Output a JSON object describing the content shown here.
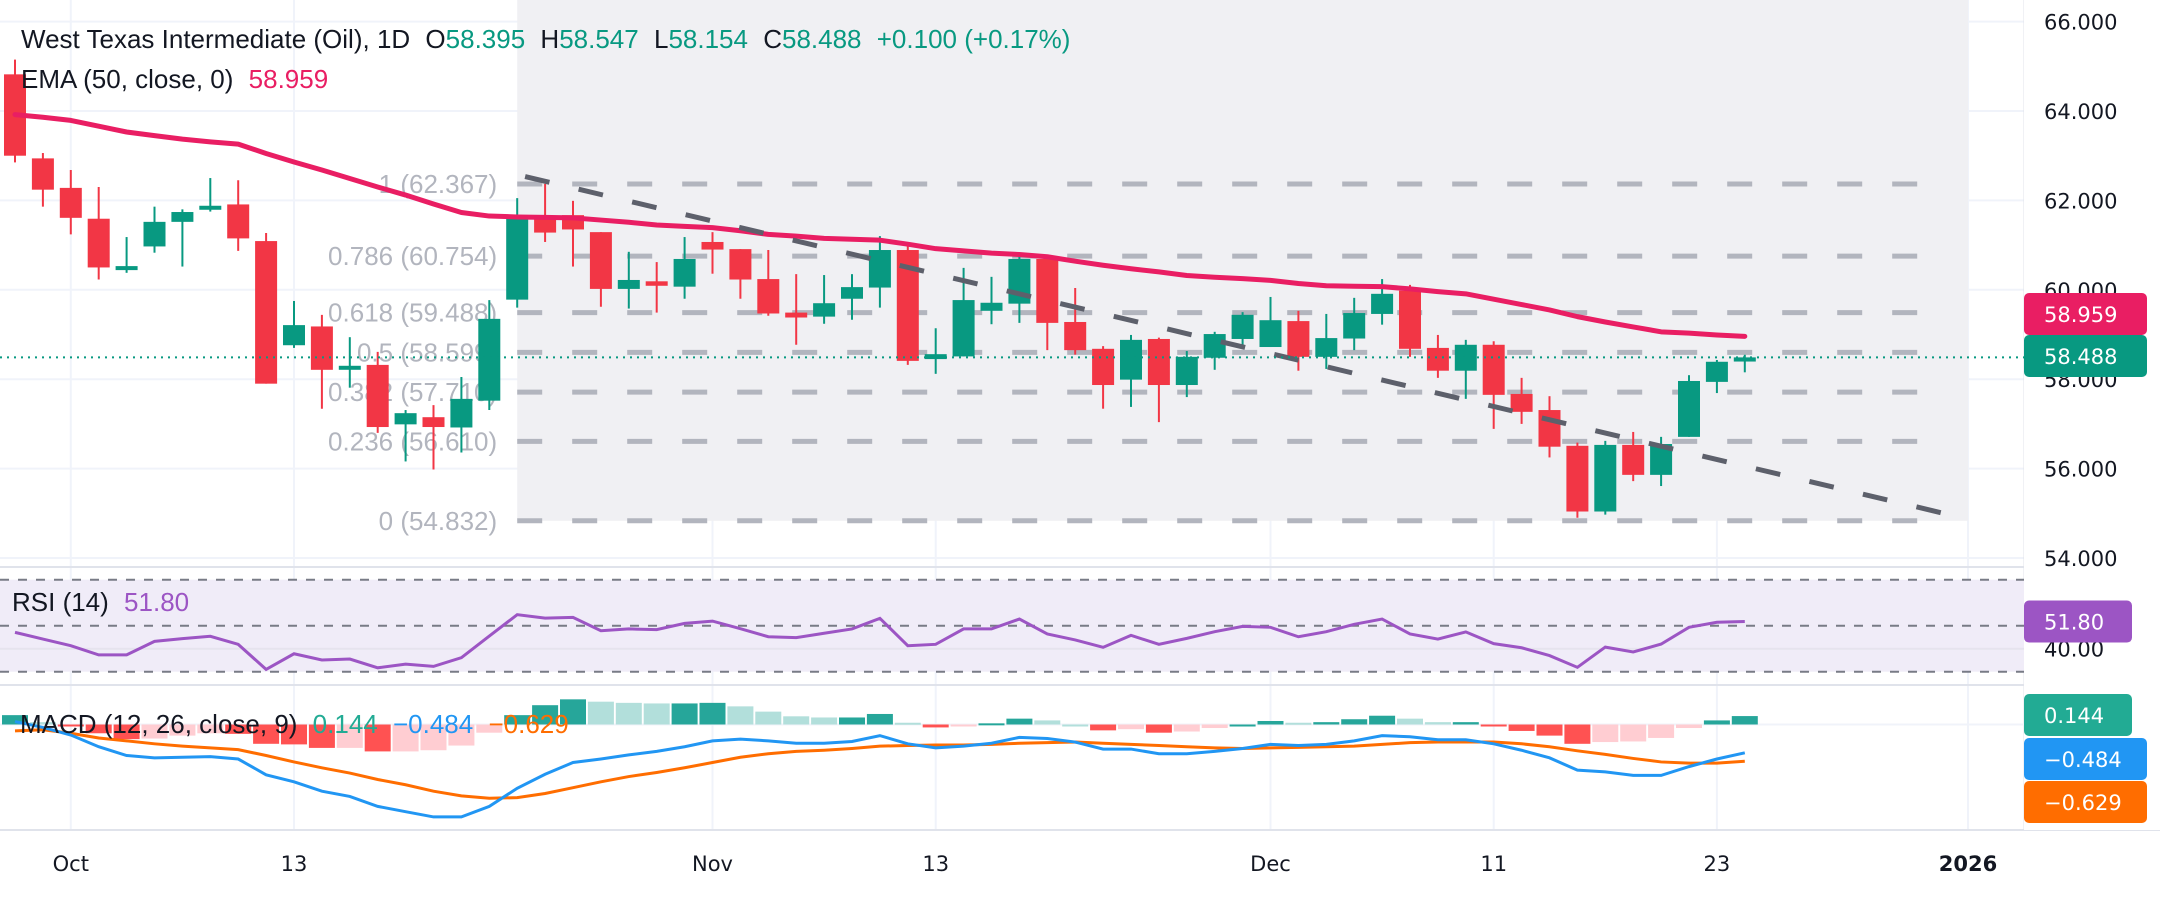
{
  "legend": {
    "symbol": "West Texas Intermediate (Oil), 1D",
    "open_label": "O",
    "open": "58.395",
    "high_label": "H",
    "high": "58.547",
    "low_label": "L",
    "low": "58.154",
    "close_label": "C",
    "close": "58.488",
    "change": "+0.100 (+0.17%)",
    "ema_label": "EMA (50, close, 0)",
    "ema_value": "58.959",
    "rsi_label": "RSI (14)",
    "rsi_value": "51.80",
    "macd_label": "MACD (12, 26, close, 9)",
    "macd_hist": "0.144",
    "macd_value": "−0.484",
    "macd_signal": "−0.629"
  },
  "colors": {
    "up": "#089981",
    "down": "#f23645",
    "ema": "#e91e63",
    "rsi": "#9c55c4",
    "macd": "#2196f3",
    "signal": "#ff6d00",
    "hist_up_strong": "#26a69a",
    "hist_up_weak": "#b2dfdb",
    "hist_down_strong": "#ff5252",
    "hist_down_weak": "#ffcdd2",
    "fib": "#b2b5be",
    "trendline": "#5d606b"
  },
  "chart_data": {
    "type": "candlestick",
    "price_axis": {
      "ticks": [
        "66.000",
        "64.000",
        "62.000",
        "60.000",
        "58.000",
        "56.000",
        "54.000"
      ],
      "range": [
        53.8,
        66.3
      ]
    },
    "time_axis": {
      "ticks": [
        {
          "label": "Oct",
          "date": "2025-10-01"
        },
        {
          "label": "13",
          "date": "2025-10-13"
        },
        {
          "label": "Nov",
          "date": "2025-11-03"
        },
        {
          "label": "13",
          "date": "2025-11-13"
        },
        {
          "label": "Dec",
          "date": "2025-12-01"
        },
        {
          "label": "11",
          "date": "2025-12-11"
        },
        {
          "label": "23",
          "date": "2025-12-23"
        },
        {
          "label": "2026",
          "date": "2026-01-05",
          "bold": true
        }
      ]
    },
    "candle_fields": [
      "date",
      "open",
      "high",
      "low",
      "close"
    ],
    "candles": [
      [
        "2025-09-29",
        64.82,
        65.15,
        62.85,
        63.0
      ],
      [
        "2025-09-30",
        62.94,
        63.06,
        61.86,
        62.24
      ],
      [
        "2025-10-01",
        62.28,
        62.68,
        61.24,
        61.61
      ],
      [
        "2025-10-02",
        61.59,
        62.3,
        60.23,
        60.5
      ],
      [
        "2025-10-03",
        60.5,
        61.18,
        60.38,
        60.53
      ],
      [
        "2025-10-06",
        60.97,
        61.86,
        60.83,
        61.52
      ],
      [
        "2025-10-07",
        61.52,
        61.8,
        60.52,
        61.74
      ],
      [
        "2025-10-08",
        61.86,
        62.5,
        61.75,
        61.88
      ],
      [
        "2025-10-09",
        61.91,
        62.45,
        60.87,
        61.15
      ],
      [
        "2025-10-10",
        61.09,
        61.27,
        57.9,
        57.9
      ],
      [
        "2025-10-13",
        58.76,
        59.75,
        58.7,
        59.21
      ],
      [
        "2025-10-14",
        59.18,
        59.44,
        57.34,
        58.21
      ],
      [
        "2025-10-15",
        58.27,
        58.94,
        57.81,
        58.3
      ],
      [
        "2025-10-16",
        58.32,
        58.61,
        56.8,
        56.93
      ],
      [
        "2025-10-17",
        56.99,
        57.31,
        56.16,
        57.24
      ],
      [
        "2025-10-20",
        57.15,
        57.42,
        55.98,
        56.93
      ],
      [
        "2025-10-21",
        56.92,
        58.05,
        56.36,
        57.56
      ],
      [
        "2025-10-22",
        57.52,
        59.77,
        57.31,
        59.35
      ],
      [
        "2025-10-23",
        59.78,
        62.05,
        59.6,
        61.61
      ],
      [
        "2025-10-24",
        61.58,
        62.37,
        61.07,
        61.28
      ],
      [
        "2025-10-27",
        61.67,
        61.99,
        60.52,
        61.35
      ],
      [
        "2025-10-28",
        61.29,
        61.29,
        59.62,
        60.02
      ],
      [
        "2025-10-29",
        60.02,
        60.85,
        59.58,
        60.22
      ],
      [
        "2025-10-30",
        60.19,
        60.62,
        59.49,
        60.09
      ],
      [
        "2025-10-31",
        60.07,
        61.18,
        59.8,
        60.69
      ],
      [
        "2025-11-03",
        61.07,
        61.29,
        60.36,
        60.9
      ],
      [
        "2025-11-04",
        60.91,
        60.91,
        59.8,
        60.23
      ],
      [
        "2025-11-05",
        60.24,
        60.89,
        59.42,
        59.47
      ],
      [
        "2025-11-06",
        59.49,
        60.35,
        58.77,
        59.38
      ],
      [
        "2025-11-07",
        59.4,
        60.33,
        59.24,
        59.7
      ],
      [
        "2025-11-10",
        59.8,
        60.35,
        59.33,
        60.06
      ],
      [
        "2025-11-11",
        60.05,
        61.2,
        59.6,
        60.89
      ],
      [
        "2025-11-12",
        60.89,
        61.02,
        58.32,
        58.41
      ],
      [
        "2025-11-13",
        58.45,
        59.14,
        58.12,
        58.56
      ],
      [
        "2025-11-14",
        58.51,
        60.49,
        58.51,
        59.77
      ],
      [
        "2025-11-17",
        59.53,
        60.29,
        59.23,
        59.71
      ],
      [
        "2025-11-18",
        59.69,
        60.82,
        59.26,
        60.69
      ],
      [
        "2025-11-19",
        60.69,
        60.69,
        58.65,
        59.26
      ],
      [
        "2025-11-20",
        59.28,
        60.04,
        58.55,
        58.65
      ],
      [
        "2025-11-21",
        58.68,
        58.74,
        57.34,
        57.87
      ],
      [
        "2025-11-24",
        57.99,
        58.99,
        57.38,
        58.88
      ],
      [
        "2025-11-25",
        58.9,
        58.93,
        57.04,
        57.87
      ],
      [
        "2025-11-26",
        57.87,
        58.63,
        57.6,
        58.5
      ],
      [
        "2025-11-27",
        58.48,
        59.06,
        58.21,
        59.01
      ],
      [
        "2025-11-28",
        58.9,
        59.5,
        58.73,
        59.44
      ],
      [
        "2025-12-01",
        58.72,
        59.84,
        58.72,
        59.32
      ],
      [
        "2025-12-02",
        59.3,
        59.53,
        58.19,
        58.5
      ],
      [
        "2025-12-03",
        58.5,
        59.46,
        58.23,
        58.92
      ],
      [
        "2025-12-04",
        58.91,
        59.82,
        58.65,
        59.48
      ],
      [
        "2025-12-05",
        59.46,
        60.24,
        59.22,
        59.91
      ],
      [
        "2025-12-08",
        59.98,
        60.11,
        58.5,
        58.68
      ],
      [
        "2025-12-09",
        58.7,
        58.99,
        58.03,
        58.19
      ],
      [
        "2025-12-10",
        58.19,
        58.88,
        57.56,
        58.77
      ],
      [
        "2025-12-11",
        58.77,
        58.85,
        56.89,
        57.65
      ],
      [
        "2025-12-12",
        57.67,
        58.03,
        57.0,
        57.27
      ],
      [
        "2025-12-15",
        57.31,
        57.62,
        56.25,
        56.49
      ],
      [
        "2025-12-16",
        56.51,
        56.58,
        54.9,
        55.04
      ],
      [
        "2025-12-17",
        55.04,
        56.62,
        54.97,
        56.53
      ],
      [
        "2025-12-18",
        56.53,
        56.82,
        55.72,
        55.86
      ],
      [
        "2025-12-19",
        55.86,
        56.71,
        55.61,
        56.55
      ],
      [
        "2025-12-22",
        56.71,
        58.09,
        56.71,
        57.96
      ],
      [
        "2025-12-23",
        57.94,
        58.43,
        57.69,
        58.39
      ],
      [
        "2025-12-24",
        58.395,
        58.547,
        58.154,
        58.488
      ]
    ],
    "ema50": [
      63.92,
      63.86,
      63.79,
      63.66,
      63.53,
      63.45,
      63.37,
      63.31,
      63.26,
      63.05,
      62.86,
      62.68,
      62.49,
      62.3,
      62.12,
      61.92,
      61.73,
      61.65,
      61.63,
      61.62,
      61.61,
      61.56,
      61.51,
      61.45,
      61.42,
      61.39,
      61.32,
      61.24,
      61.2,
      61.15,
      61.13,
      61.11,
      61.02,
      60.92,
      60.87,
      60.82,
      60.79,
      60.74,
      60.64,
      60.55,
      60.47,
      60.4,
      60.32,
      60.28,
      60.25,
      60.21,
      60.14,
      60.09,
      60.08,
      60.07,
      60.02,
      59.96,
      59.91,
      59.79,
      59.67,
      59.55,
      59.4,
      59.28,
      59.17,
      59.06,
      59.03,
      58.99,
      58.959
    ],
    "fibonacci": {
      "start_date": "2025-10-23",
      "end_date": "2026-01-05",
      "levels": [
        {
          "ratio": "1",
          "price": 62.367,
          "label": "1 (62.367)"
        },
        {
          "ratio": "0.786",
          "price": 60.754,
          "label": "0.786 (60.754)"
        },
        {
          "ratio": "0.618",
          "price": 59.488,
          "label": "0.618 (59.488)"
        },
        {
          "ratio": "0.5",
          "price": 58.599,
          "label": "0.5 (58.599)"
        },
        {
          "ratio": "0.382",
          "price": 57.71,
          "label": "0.382 (57.710)"
        },
        {
          "ratio": "0.236",
          "price": 56.61,
          "label": "0.236 (56.610)"
        },
        {
          "ratio": "0",
          "price": 54.832,
          "label": "0 (54.832)"
        }
      ]
    },
    "trendline": [
      {
        "date": "2025-10-24",
        "price": 62.4
      },
      {
        "date": "2026-01-05",
        "price": 54.87
      }
    ],
    "last_price": {
      "value": 58.488,
      "label": "58.488"
    },
    "ema_tag": {
      "value": 58.959,
      "label": "58.959"
    },
    "rsi": {
      "ticks": [
        {
          "value": 40,
          "label": "40.00"
        }
      ],
      "bands": [
        70,
        50,
        30
      ],
      "range": [
        23,
        82
      ],
      "tag": "51.80",
      "values": [
        47.1,
        44.2,
        41.3,
        37.3,
        37.3,
        43.2,
        44.4,
        45.4,
        41.9,
        31.0,
        37.8,
        35.1,
        35.5,
        31.7,
        33.3,
        32.3,
        36.1,
        45.5,
        54.8,
        53.3,
        53.6,
        47.8,
        48.6,
        48.3,
        51.0,
        52.0,
        48.7,
        45.2,
        44.8,
        46.7,
        48.6,
        53.2,
        41.3,
        41.9,
        48.6,
        48.6,
        52.9,
        46.4,
        43.8,
        40.6,
        45.8,
        41.9,
        44.5,
        47.4,
        49.7,
        49.3,
        45.2,
        47.4,
        50.6,
        52.9,
        46.4,
        44.2,
        47.3,
        42.2,
        40.4,
        37.0,
        31.9,
        40.7,
        38.6,
        42.0,
        49.3,
        51.5,
        51.8
      ]
    },
    "macd": {
      "tags": {
        "hist": "0.144",
        "macd": "−0.484",
        "signal": "−0.629"
      },
      "macd": [
        0.05,
        -0.05,
        -0.18,
        -0.38,
        -0.53,
        -0.57,
        -0.56,
        -0.55,
        -0.59,
        -0.86,
        -0.98,
        -1.14,
        -1.23,
        -1.4,
        -1.49,
        -1.58,
        -1.58,
        -1.4,
        -1.09,
        -0.85,
        -0.65,
        -0.59,
        -0.52,
        -0.46,
        -0.38,
        -0.28,
        -0.25,
        -0.28,
        -0.32,
        -0.32,
        -0.29,
        -0.19,
        -0.33,
        -0.4,
        -0.37,
        -0.32,
        -0.22,
        -0.24,
        -0.3,
        -0.42,
        -0.42,
        -0.5,
        -0.5,
        -0.46,
        -0.41,
        -0.34,
        -0.36,
        -0.34,
        -0.28,
        -0.19,
        -0.21,
        -0.26,
        -0.26,
        -0.33,
        -0.44,
        -0.57,
        -0.78,
        -0.81,
        -0.87,
        -0.87,
        -0.72,
        -0.59,
        -0.484
      ],
      "signal": [
        -0.11,
        -0.09,
        -0.15,
        -0.23,
        -0.28,
        -0.33,
        -0.37,
        -0.4,
        -0.43,
        -0.53,
        -0.64,
        -0.74,
        -0.83,
        -0.94,
        -1.03,
        -1.14,
        -1.22,
        -1.26,
        -1.25,
        -1.18,
        -1.08,
        -0.98,
        -0.89,
        -0.82,
        -0.74,
        -0.65,
        -0.56,
        -0.5,
        -0.46,
        -0.44,
        -0.41,
        -0.37,
        -0.36,
        -0.35,
        -0.35,
        -0.34,
        -0.32,
        -0.31,
        -0.3,
        -0.32,
        -0.34,
        -0.36,
        -0.38,
        -0.4,
        -0.41,
        -0.4,
        -0.39,
        -0.38,
        -0.37,
        -0.34,
        -0.31,
        -0.3,
        -0.3,
        -0.3,
        -0.33,
        -0.38,
        -0.45,
        -0.51,
        -0.58,
        -0.64,
        -0.66,
        -0.66,
        -0.629
      ],
      "histogram": [
        0.16,
        0.04,
        -0.03,
        -0.15,
        -0.25,
        -0.24,
        -0.19,
        -0.15,
        -0.16,
        -0.33,
        -0.34,
        -0.4,
        -0.4,
        -0.46,
        -0.46,
        -0.44,
        -0.36,
        -0.14,
        0.16,
        0.33,
        0.43,
        0.39,
        0.37,
        0.36,
        0.36,
        0.37,
        0.31,
        0.22,
        0.14,
        0.12,
        0.12,
        0.18,
        0.03,
        -0.05,
        -0.02,
        0.02,
        0.1,
        0.07,
        0.0,
        -0.1,
        -0.08,
        -0.14,
        -0.12,
        -0.06,
        0.0,
        0.06,
        0.03,
        0.04,
        0.09,
        0.15,
        0.1,
        0.04,
        0.04,
        -0.03,
        -0.11,
        -0.19,
        -0.33,
        -0.3,
        -0.29,
        -0.23,
        -0.06,
        0.07,
        0.144
      ]
    }
  }
}
